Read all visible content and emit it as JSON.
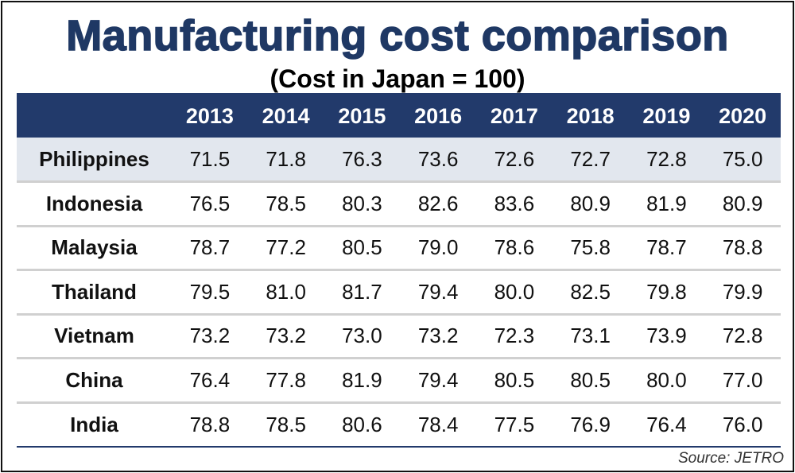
{
  "chart_data": {
    "type": "table",
    "title": "Manufacturing cost comparison",
    "subtitle": "(Cost in Japan = 100)",
    "columns": [
      "2013",
      "2014",
      "2015",
      "2016",
      "2017",
      "2018",
      "2019",
      "2020"
    ],
    "rows": [
      {
        "country": "Philippines",
        "values": [
          "71.5",
          "71.8",
          "76.3",
          "73.6",
          "72.6",
          "72.7",
          "72.8",
          "75.0"
        ]
      },
      {
        "country": "Indonesia",
        "values": [
          "76.5",
          "78.5",
          "80.3",
          "82.6",
          "83.6",
          "80.9",
          "81.9",
          "80.9"
        ]
      },
      {
        "country": "Malaysia",
        "values": [
          "78.7",
          "77.2",
          "80.5",
          "79.0",
          "78.6",
          "75.8",
          "78.7",
          "78.8"
        ]
      },
      {
        "country": "Thailand",
        "values": [
          "79.5",
          "81.0",
          "81.7",
          "79.4",
          "80.0",
          "82.5",
          "79.8",
          "79.9"
        ]
      },
      {
        "country": "Vietnam",
        "values": [
          "73.2",
          "73.2",
          "73.0",
          "73.2",
          "72.3",
          "73.1",
          "73.9",
          "72.8"
        ]
      },
      {
        "country": "China",
        "values": [
          "76.4",
          "77.8",
          "81.9",
          "79.4",
          "80.5",
          "80.5",
          "80.0",
          "77.0"
        ]
      },
      {
        "country": "India",
        "values": [
          "78.8",
          "78.5",
          "80.6",
          "78.4",
          "77.5",
          "76.9",
          "76.4",
          "76.0"
        ]
      }
    ],
    "source": "Source: JETRO"
  },
  "colors": {
    "header_bg": "#223a6b",
    "title": "#1f3864",
    "first_row_bg": "#e2e7ee"
  }
}
